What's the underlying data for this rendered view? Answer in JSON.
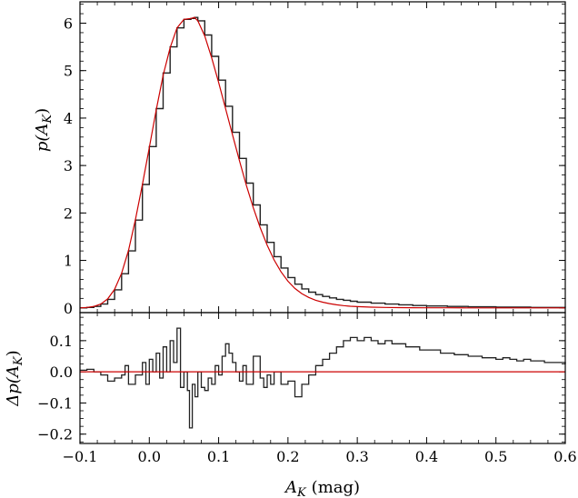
{
  "chart_data": [
    {
      "type": "line",
      "panel": "top",
      "ylabel_main": "p(A",
      "ylabel_sub": "K",
      "ylabel_close": ")",
      "xlim": [
        -0.1,
        0.6
      ],
      "ylim": [
        -0.1,
        6.45
      ],
      "x_ticks": [
        -0.1,
        0.0,
        0.1,
        0.2,
        0.3,
        0.4,
        0.5,
        0.6
      ],
      "y_ticks": [
        "0",
        "1",
        "2",
        "3",
        "4",
        "5",
        "6"
      ],
      "y_tick_values": [
        0,
        1,
        2,
        3,
        4,
        5,
        6
      ],
      "series": [
        {
          "kind": "histogram",
          "color": "#222222",
          "x": [
            -0.1,
            -0.09,
            -0.08,
            -0.07,
            -0.06,
            -0.05,
            -0.04,
            -0.03,
            -0.02,
            -0.01,
            0.0,
            0.01,
            0.02,
            0.03,
            0.04,
            0.05,
            0.06,
            0.065,
            0.07,
            0.08,
            0.09,
            0.1,
            0.11,
            0.12,
            0.13,
            0.14,
            0.15,
            0.16,
            0.17,
            0.18,
            0.19,
            0.2,
            0.21,
            0.22,
            0.23,
            0.24,
            0.25,
            0.26,
            0.27,
            0.28,
            0.29,
            0.3,
            0.32,
            0.34,
            0.36,
            0.38,
            0.4,
            0.43,
            0.46,
            0.5,
            0.55,
            0.6
          ],
          "y": [
            0.0,
            0.01,
            0.03,
            0.08,
            0.18,
            0.38,
            0.72,
            1.2,
            1.85,
            2.6,
            3.4,
            4.2,
            4.95,
            5.5,
            5.9,
            6.08,
            6.1,
            6.12,
            6.05,
            5.75,
            5.3,
            4.8,
            4.25,
            3.7,
            3.15,
            2.63,
            2.17,
            1.75,
            1.38,
            1.08,
            0.84,
            0.64,
            0.5,
            0.4,
            0.33,
            0.28,
            0.24,
            0.21,
            0.18,
            0.16,
            0.14,
            0.12,
            0.1,
            0.08,
            0.065,
            0.05,
            0.04,
            0.03,
            0.022,
            0.015,
            0.01,
            0.005
          ]
        },
        {
          "kind": "fit",
          "color": "#cc0000",
          "x": [
            -0.1,
            -0.09,
            -0.08,
            -0.07,
            -0.06,
            -0.05,
            -0.04,
            -0.03,
            -0.02,
            -0.01,
            0.0,
            0.01,
            0.02,
            0.03,
            0.04,
            0.05,
            0.06,
            0.065,
            0.07,
            0.08,
            0.09,
            0.1,
            0.11,
            0.12,
            0.13,
            0.14,
            0.15,
            0.16,
            0.17,
            0.18,
            0.19,
            0.2,
            0.21,
            0.22,
            0.23,
            0.24,
            0.25,
            0.26,
            0.27,
            0.28,
            0.29,
            0.3,
            0.32,
            0.34,
            0.36,
            0.38,
            0.4,
            0.43,
            0.46,
            0.5,
            0.55,
            0.6
          ],
          "y": [
            0.0,
            0.01,
            0.03,
            0.08,
            0.19,
            0.39,
            0.73,
            1.21,
            1.86,
            2.6,
            3.38,
            4.17,
            4.9,
            5.48,
            5.9,
            6.08,
            6.1,
            6.12,
            6.05,
            5.73,
            5.27,
            4.75,
            4.2,
            3.65,
            3.1,
            2.58,
            2.11,
            1.69,
            1.32,
            1.01,
            0.76,
            0.56,
            0.41,
            0.3,
            0.22,
            0.16,
            0.12,
            0.09,
            0.065,
            0.048,
            0.035,
            0.026,
            0.015,
            0.009,
            0.005,
            0.003,
            0.002,
            0.001,
            0.0,
            0.0,
            0.0,
            0.0
          ]
        }
      ]
    },
    {
      "type": "line",
      "panel": "bottom",
      "ylabel_main": "Δp(A",
      "ylabel_sub": "K",
      "ylabel_close": ")",
      "xlabel_main": "A",
      "xlabel_sub": "K",
      "xlabel_unit": "(mag)",
      "xlim": [
        -0.1,
        0.6
      ],
      "ylim": [
        -0.23,
        0.19
      ],
      "x_ticks": [
        "−0.1",
        "0.0",
        "0.1",
        "0.2",
        "0.3",
        "0.4",
        "0.5",
        "0.6"
      ],
      "x_tick_values": [
        -0.1,
        0.0,
        0.1,
        0.2,
        0.3,
        0.4,
        0.5,
        0.6
      ],
      "y_ticks": [
        "0.1",
        "0.0",
        "−0.1",
        "−0.2"
      ],
      "y_tick_values": [
        0.1,
        0.0,
        -0.1,
        -0.2
      ],
      "series": [
        {
          "kind": "residual",
          "color": "#222222",
          "x": [
            -0.1,
            -0.09,
            -0.08,
            -0.07,
            -0.06,
            -0.05,
            -0.04,
            -0.035,
            -0.03,
            -0.02,
            -0.01,
            -0.005,
            0.0,
            0.005,
            0.01,
            0.015,
            0.02,
            0.025,
            0.03,
            0.035,
            0.04,
            0.045,
            0.05,
            0.055,
            0.058,
            0.062,
            0.066,
            0.07,
            0.075,
            0.08,
            0.085,
            0.09,
            0.095,
            0.1,
            0.105,
            0.11,
            0.115,
            0.12,
            0.125,
            0.13,
            0.135,
            0.14,
            0.15,
            0.16,
            0.165,
            0.17,
            0.175,
            0.18,
            0.19,
            0.2,
            0.21,
            0.22,
            0.23,
            0.24,
            0.25,
            0.26,
            0.27,
            0.28,
            0.29,
            0.3,
            0.31,
            0.32,
            0.33,
            0.34,
            0.35,
            0.36,
            0.37,
            0.38,
            0.39,
            0.4,
            0.41,
            0.42,
            0.43,
            0.44,
            0.45,
            0.46,
            0.47,
            0.48,
            0.49,
            0.5,
            0.51,
            0.52,
            0.53,
            0.54,
            0.55,
            0.56,
            0.57,
            0.58,
            0.59,
            0.6
          ],
          "y": [
            0.005,
            0.008,
            0.0,
            -0.01,
            -0.03,
            -0.02,
            -0.01,
            0.02,
            -0.04,
            -0.01,
            0.03,
            -0.04,
            0.04,
            0.0,
            0.06,
            -0.02,
            0.08,
            0.0,
            0.1,
            0.03,
            0.14,
            -0.05,
            0.0,
            -0.06,
            -0.18,
            -0.04,
            -0.08,
            0.0,
            -0.05,
            -0.06,
            -0.02,
            -0.04,
            0.02,
            -0.01,
            0.05,
            0.09,
            0.06,
            0.03,
            0.0,
            -0.03,
            0.02,
            -0.04,
            0.05,
            -0.02,
            -0.05,
            -0.01,
            -0.04,
            0.0,
            -0.04,
            -0.03,
            -0.08,
            -0.04,
            -0.01,
            0.02,
            0.04,
            0.06,
            0.08,
            0.1,
            0.11,
            0.1,
            0.11,
            0.1,
            0.09,
            0.1,
            0.09,
            0.09,
            0.08,
            0.08,
            0.07,
            0.07,
            0.07,
            0.06,
            0.06,
            0.055,
            0.055,
            0.05,
            0.05,
            0.045,
            0.045,
            0.04,
            0.045,
            0.04,
            0.035,
            0.04,
            0.035,
            0.035,
            0.03,
            0.03,
            0.03,
            0.025
          ]
        },
        {
          "kind": "zero-line",
          "color": "#cc0000",
          "x": [
            -0.1,
            0.6
          ],
          "y": [
            0.0,
            0.0
          ]
        }
      ]
    }
  ]
}
